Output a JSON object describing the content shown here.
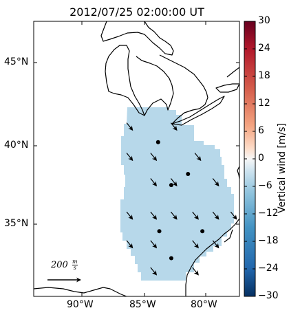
{
  "title": "2012/07/25 02:00:00 UT",
  "axes": {
    "y_ticks": [
      "45°N",
      "40°N",
      "35°N"
    ],
    "x_ticks": [
      "90°W",
      "85°W",
      "80°W"
    ]
  },
  "colorbar": {
    "label": "Vertical wind [m/s]",
    "ticks": [
      "30",
      "24",
      "18",
      "12",
      "6",
      "0",
      "−6",
      "−12",
      "−18",
      "−24",
      "−30"
    ],
    "range": [
      -30,
      30
    ],
    "colormap": "RdBu_r",
    "colors": {
      "top": "#67001f",
      "mid": "#f7f7f7",
      "bottom": "#053061"
    }
  },
  "field": {
    "value": -10,
    "fill_color": "#b7d8ea"
  },
  "scale": {
    "value": "200",
    "unit_num": "m",
    "unit_den": "s"
  },
  "chart_data": {
    "type": "map",
    "title": "2012/07/25 02:00:00 UT",
    "projection": "lat-lon",
    "lon_range": [
      -94.5,
      -77.3
    ],
    "lat_range": [
      30.3,
      47.6
    ],
    "colorbar_label": "Vertical wind [m/s]",
    "colorbar_range": [
      -30,
      30
    ],
    "vector_scale": "200 m/s",
    "wind_vectors": [
      {
        "lon": -86.5,
        "lat": 41.0
      },
      {
        "lon": -82.8,
        "lat": 41.0
      },
      {
        "lon": -86.5,
        "lat": 39.1
      },
      {
        "lon": -84.5,
        "lat": 39.1
      },
      {
        "lon": -80.8,
        "lat": 39.1
      },
      {
        "lon": -84.5,
        "lat": 37.5
      },
      {
        "lon": -82.8,
        "lat": 37.5
      },
      {
        "lon": -79.3,
        "lat": 37.5
      },
      {
        "lon": -86.5,
        "lat": 35.4
      },
      {
        "lon": -84.5,
        "lat": 35.4
      },
      {
        "lon": -82.8,
        "lat": 35.4
      },
      {
        "lon": -81.0,
        "lat": 35.4
      },
      {
        "lon": -79.3,
        "lat": 35.4
      },
      {
        "lon": -77.8,
        "lat": 35.4
      },
      {
        "lon": -86.5,
        "lat": 33.6
      },
      {
        "lon": -84.5,
        "lat": 33.6
      },
      {
        "lon": -81.0,
        "lat": 33.6
      },
      {
        "lon": -79.3,
        "lat": 33.6
      },
      {
        "lon": -84.5,
        "lat": 31.9
      },
      {
        "lon": -81.0,
        "lat": 31.9
      }
    ],
    "station_dots": [
      {
        "lon": -84.1,
        "lat": 40.0
      },
      {
        "lon": -81.6,
        "lat": 38.0
      },
      {
        "lon": -83.0,
        "lat": 37.3
      },
      {
        "lon": -84.0,
        "lat": 34.4
      },
      {
        "lon": -80.4,
        "lat": 34.4
      },
      {
        "lon": -83.0,
        "lat": 32.7
      }
    ]
  }
}
